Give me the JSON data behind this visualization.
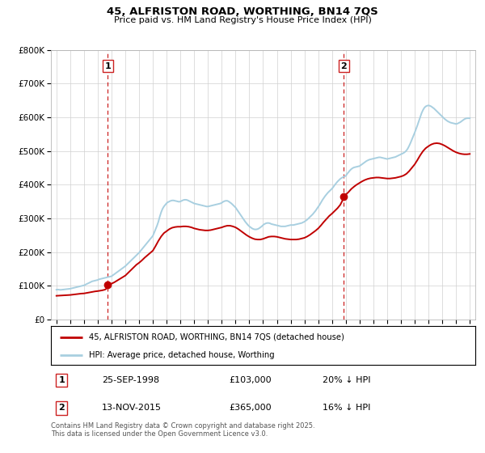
{
  "title": "45, ALFRISTON ROAD, WORTHING, BN14 7QS",
  "subtitle": "Price paid vs. HM Land Registry's House Price Index (HPI)",
  "sale1_date": "25-SEP-1998",
  "sale1_price": 103000,
  "sale1_label": "20% ↓ HPI",
  "sale2_date": "13-NOV-2015",
  "sale2_price": 365000,
  "sale2_label": "16% ↓ HPI",
  "sale1_x": 1998.73,
  "sale2_x": 2015.86,
  "hpi_color": "#a8cfe0",
  "price_paid_color": "#c00000",
  "vline_color": "#cc2222",
  "background_color": "#ffffff",
  "grid_color": "#d0d0d0",
  "legend_label_price": "45, ALFRISTON ROAD, WORTHING, BN14 7QS (detached house)",
  "legend_label_hpi": "HPI: Average price, detached house, Worthing",
  "footer": "Contains HM Land Registry data © Crown copyright and database right 2025.\nThis data is licensed under the Open Government Licence v3.0.",
  "ylim": [
    0,
    800000
  ],
  "xlim_start": 1994.6,
  "xlim_end": 2025.4,
  "hpi_data": [
    [
      1995.0,
      88000
    ],
    [
      1995.1,
      88500
    ],
    [
      1995.2,
      88000
    ],
    [
      1995.3,
      87500
    ],
    [
      1995.4,
      88000
    ],
    [
      1995.5,
      88500
    ],
    [
      1995.6,
      89000
    ],
    [
      1995.7,
      89500
    ],
    [
      1995.8,
      90000
    ],
    [
      1995.9,
      90500
    ],
    [
      1996.0,
      91000
    ],
    [
      1996.1,
      92000
    ],
    [
      1996.2,
      93000
    ],
    [
      1996.3,
      94000
    ],
    [
      1996.4,
      95000
    ],
    [
      1996.5,
      96000
    ],
    [
      1996.6,
      97000
    ],
    [
      1996.7,
      98000
    ],
    [
      1996.8,
      99000
    ],
    [
      1996.9,
      100000
    ],
    [
      1997.0,
      101000
    ],
    [
      1997.1,
      103000
    ],
    [
      1997.2,
      105000
    ],
    [
      1997.3,
      107000
    ],
    [
      1997.4,
      109000
    ],
    [
      1997.5,
      111000
    ],
    [
      1997.6,
      113000
    ],
    [
      1997.7,
      114000
    ],
    [
      1997.8,
      115000
    ],
    [
      1997.9,
      116000
    ],
    [
      1998.0,
      117000
    ],
    [
      1998.1,
      119000
    ],
    [
      1998.2,
      120000
    ],
    [
      1998.3,
      121000
    ],
    [
      1998.4,
      122000
    ],
    [
      1998.5,
      123000
    ],
    [
      1998.6,
      124000
    ],
    [
      1998.7,
      125000
    ],
    [
      1998.8,
      126000
    ],
    [
      1998.9,
      127000
    ],
    [
      1999.0,
      128000
    ],
    [
      1999.1,
      131000
    ],
    [
      1999.2,
      134000
    ],
    [
      1999.3,
      137000
    ],
    [
      1999.4,
      140000
    ],
    [
      1999.5,
      143000
    ],
    [
      1999.6,
      146000
    ],
    [
      1999.7,
      149000
    ],
    [
      1999.8,
      152000
    ],
    [
      1999.9,
      155000
    ],
    [
      2000.0,
      158000
    ],
    [
      2000.1,
      162000
    ],
    [
      2000.2,
      166000
    ],
    [
      2000.3,
      170000
    ],
    [
      2000.4,
      174000
    ],
    [
      2000.5,
      178000
    ],
    [
      2000.6,
      182000
    ],
    [
      2000.7,
      186000
    ],
    [
      2000.8,
      190000
    ],
    [
      2000.9,
      194000
    ],
    [
      2001.0,
      198000
    ],
    [
      2001.1,
      203000
    ],
    [
      2001.2,
      208000
    ],
    [
      2001.3,
      213000
    ],
    [
      2001.4,
      218000
    ],
    [
      2001.5,
      223000
    ],
    [
      2001.6,
      228000
    ],
    [
      2001.7,
      233000
    ],
    [
      2001.8,
      238000
    ],
    [
      2001.9,
      243000
    ],
    [
      2002.0,
      248000
    ],
    [
      2002.1,
      258000
    ],
    [
      2002.2,
      268000
    ],
    [
      2002.3,
      278000
    ],
    [
      2002.4,
      290000
    ],
    [
      2002.5,
      305000
    ],
    [
      2002.6,
      318000
    ],
    [
      2002.7,
      328000
    ],
    [
      2002.8,
      335000
    ],
    [
      2002.9,
      340000
    ],
    [
      2003.0,
      345000
    ],
    [
      2003.1,
      348000
    ],
    [
      2003.2,
      350000
    ],
    [
      2003.3,
      352000
    ],
    [
      2003.4,
      353000
    ],
    [
      2003.5,
      353000
    ],
    [
      2003.6,
      352000
    ],
    [
      2003.7,
      351000
    ],
    [
      2003.8,
      350000
    ],
    [
      2003.9,
      349000
    ],
    [
      2004.0,
      350000
    ],
    [
      2004.1,
      352000
    ],
    [
      2004.2,
      354000
    ],
    [
      2004.3,
      355000
    ],
    [
      2004.4,
      355000
    ],
    [
      2004.5,
      354000
    ],
    [
      2004.6,
      352000
    ],
    [
      2004.7,
      350000
    ],
    [
      2004.8,
      348000
    ],
    [
      2004.9,
      346000
    ],
    [
      2005.0,
      344000
    ],
    [
      2005.1,
      343000
    ],
    [
      2005.2,
      342000
    ],
    [
      2005.3,
      341000
    ],
    [
      2005.4,
      340000
    ],
    [
      2005.5,
      339000
    ],
    [
      2005.6,
      338000
    ],
    [
      2005.7,
      337000
    ],
    [
      2005.8,
      336000
    ],
    [
      2005.9,
      335000
    ],
    [
      2006.0,
      335000
    ],
    [
      2006.1,
      336000
    ],
    [
      2006.2,
      337000
    ],
    [
      2006.3,
      338000
    ],
    [
      2006.4,
      339000
    ],
    [
      2006.5,
      340000
    ],
    [
      2006.6,
      341000
    ],
    [
      2006.7,
      342000
    ],
    [
      2006.8,
      343000
    ],
    [
      2006.9,
      344000
    ],
    [
      2007.0,
      346000
    ],
    [
      2007.1,
      349000
    ],
    [
      2007.2,
      351000
    ],
    [
      2007.3,
      352000
    ],
    [
      2007.4,
      352000
    ],
    [
      2007.5,
      350000
    ],
    [
      2007.6,
      347000
    ],
    [
      2007.7,
      344000
    ],
    [
      2007.8,
      340000
    ],
    [
      2007.9,
      336000
    ],
    [
      2008.0,
      332000
    ],
    [
      2008.1,
      326000
    ],
    [
      2008.2,
      320000
    ],
    [
      2008.3,
      314000
    ],
    [
      2008.4,
      308000
    ],
    [
      2008.5,
      302000
    ],
    [
      2008.6,
      296000
    ],
    [
      2008.7,
      290000
    ],
    [
      2008.8,
      285000
    ],
    [
      2008.9,
      280000
    ],
    [
      2009.0,
      276000
    ],
    [
      2009.1,
      273000
    ],
    [
      2009.2,
      270000
    ],
    [
      2009.3,
      268000
    ],
    [
      2009.4,
      267000
    ],
    [
      2009.5,
      267000
    ],
    [
      2009.6,
      268000
    ],
    [
      2009.7,
      270000
    ],
    [
      2009.8,
      273000
    ],
    [
      2009.9,
      276000
    ],
    [
      2010.0,
      280000
    ],
    [
      2010.1,
      283000
    ],
    [
      2010.2,
      285000
    ],
    [
      2010.3,
      286000
    ],
    [
      2010.4,
      286000
    ],
    [
      2010.5,
      285000
    ],
    [
      2010.6,
      283000
    ],
    [
      2010.7,
      282000
    ],
    [
      2010.8,
      281000
    ],
    [
      2010.9,
      280000
    ],
    [
      2011.0,
      279000
    ],
    [
      2011.1,
      278000
    ],
    [
      2011.2,
      277000
    ],
    [
      2011.3,
      276000
    ],
    [
      2011.4,
      276000
    ],
    [
      2011.5,
      276000
    ],
    [
      2011.6,
      276000
    ],
    [
      2011.7,
      277000
    ],
    [
      2011.8,
      278000
    ],
    [
      2011.9,
      279000
    ],
    [
      2012.0,
      280000
    ],
    [
      2012.1,
      280000
    ],
    [
      2012.2,
      280000
    ],
    [
      2012.3,
      281000
    ],
    [
      2012.4,
      282000
    ],
    [
      2012.5,
      283000
    ],
    [
      2012.6,
      284000
    ],
    [
      2012.7,
      285000
    ],
    [
      2012.8,
      286000
    ],
    [
      2012.9,
      288000
    ],
    [
      2013.0,
      290000
    ],
    [
      2013.1,
      293000
    ],
    [
      2013.2,
      296000
    ],
    [
      2013.3,
      300000
    ],
    [
      2013.4,
      304000
    ],
    [
      2013.5,
      308000
    ],
    [
      2013.6,
      312000
    ],
    [
      2013.7,
      317000
    ],
    [
      2013.8,
      322000
    ],
    [
      2013.9,
      328000
    ],
    [
      2014.0,
      334000
    ],
    [
      2014.1,
      340000
    ],
    [
      2014.2,
      347000
    ],
    [
      2014.3,
      354000
    ],
    [
      2014.4,
      360000
    ],
    [
      2014.5,
      366000
    ],
    [
      2014.6,
      371000
    ],
    [
      2014.7,
      376000
    ],
    [
      2014.8,
      380000
    ],
    [
      2014.9,
      384000
    ],
    [
      2015.0,
      388000
    ],
    [
      2015.1,
      393000
    ],
    [
      2015.2,
      399000
    ],
    [
      2015.3,
      404000
    ],
    [
      2015.4,
      409000
    ],
    [
      2015.5,
      413000
    ],
    [
      2015.6,
      417000
    ],
    [
      2015.7,
      420000
    ],
    [
      2015.8,
      422000
    ],
    [
      2015.9,
      424000
    ],
    [
      2016.0,
      426000
    ],
    [
      2016.1,
      432000
    ],
    [
      2016.2,
      437000
    ],
    [
      2016.3,
      442000
    ],
    [
      2016.4,
      446000
    ],
    [
      2016.5,
      449000
    ],
    [
      2016.6,
      451000
    ],
    [
      2016.7,
      452000
    ],
    [
      2016.8,
      453000
    ],
    [
      2016.9,
      454000
    ],
    [
      2017.0,
      455000
    ],
    [
      2017.1,
      458000
    ],
    [
      2017.2,
      461000
    ],
    [
      2017.3,
      464000
    ],
    [
      2017.4,
      467000
    ],
    [
      2017.5,
      470000
    ],
    [
      2017.6,
      472000
    ],
    [
      2017.7,
      474000
    ],
    [
      2017.8,
      475000
    ],
    [
      2017.9,
      476000
    ],
    [
      2018.0,
      477000
    ],
    [
      2018.1,
      478000
    ],
    [
      2018.2,
      479000
    ],
    [
      2018.3,
      480000
    ],
    [
      2018.4,
      481000
    ],
    [
      2018.5,
      481000
    ],
    [
      2018.6,
      480000
    ],
    [
      2018.7,
      479000
    ],
    [
      2018.8,
      478000
    ],
    [
      2018.9,
      477000
    ],
    [
      2019.0,
      476000
    ],
    [
      2019.1,
      477000
    ],
    [
      2019.2,
      478000
    ],
    [
      2019.3,
      479000
    ],
    [
      2019.4,
      480000
    ],
    [
      2019.5,
      481000
    ],
    [
      2019.6,
      482000
    ],
    [
      2019.7,
      484000
    ],
    [
      2019.8,
      486000
    ],
    [
      2019.9,
      488000
    ],
    [
      2020.0,
      490000
    ],
    [
      2020.1,
      492000
    ],
    [
      2020.2,
      494000
    ],
    [
      2020.3,
      497000
    ],
    [
      2020.4,
      501000
    ],
    [
      2020.5,
      507000
    ],
    [
      2020.6,
      515000
    ],
    [
      2020.7,
      524000
    ],
    [
      2020.8,
      534000
    ],
    [
      2020.9,
      544000
    ],
    [
      2021.0,
      554000
    ],
    [
      2021.1,
      565000
    ],
    [
      2021.2,
      576000
    ],
    [
      2021.3,
      588000
    ],
    [
      2021.4,
      600000
    ],
    [
      2021.5,
      612000
    ],
    [
      2021.6,
      621000
    ],
    [
      2021.7,
      628000
    ],
    [
      2021.8,
      632000
    ],
    [
      2021.9,
      634000
    ],
    [
      2022.0,
      635000
    ],
    [
      2022.1,
      634000
    ],
    [
      2022.2,
      632000
    ],
    [
      2022.3,
      629000
    ],
    [
      2022.4,
      626000
    ],
    [
      2022.5,
      622000
    ],
    [
      2022.6,
      618000
    ],
    [
      2022.7,
      614000
    ],
    [
      2022.8,
      610000
    ],
    [
      2022.9,
      606000
    ],
    [
      2023.0,
      602000
    ],
    [
      2023.1,
      598000
    ],
    [
      2023.2,
      594000
    ],
    [
      2023.3,
      591000
    ],
    [
      2023.4,
      588000
    ],
    [
      2023.5,
      586000
    ],
    [
      2023.6,
      584000
    ],
    [
      2023.7,
      583000
    ],
    [
      2023.8,
      582000
    ],
    [
      2023.9,
      581000
    ],
    [
      2024.0,
      580000
    ],
    [
      2024.1,
      581000
    ],
    [
      2024.2,
      583000
    ],
    [
      2024.3,
      585000
    ],
    [
      2024.4,
      588000
    ],
    [
      2024.5,
      591000
    ],
    [
      2024.6,
      594000
    ],
    [
      2024.7,
      596000
    ],
    [
      2024.8,
      597000
    ],
    [
      2024.9,
      597000
    ],
    [
      2025.0,
      597000
    ]
  ],
  "price_paid_data": [
    [
      1995.0,
      70000
    ],
    [
      1995.2,
      70500
    ],
    [
      1995.4,
      71000
    ],
    [
      1995.6,
      71500
    ],
    [
      1995.8,
      72000
    ],
    [
      1996.0,
      72500
    ],
    [
      1996.2,
      73500
    ],
    [
      1996.4,
      74500
    ],
    [
      1996.6,
      75500
    ],
    [
      1996.8,
      76500
    ],
    [
      1997.0,
      77000
    ],
    [
      1997.2,
      78500
    ],
    [
      1997.4,
      80000
    ],
    [
      1997.6,
      81500
    ],
    [
      1997.8,
      83000
    ],
    [
      1998.0,
      84000
    ],
    [
      1998.3,
      86000
    ],
    [
      1998.5,
      88000
    ],
    [
      1998.6,
      90000
    ],
    [
      1998.73,
      103000
    ],
    [
      1999.0,
      106000
    ],
    [
      1999.2,
      110000
    ],
    [
      1999.4,
      115000
    ],
    [
      1999.6,
      120000
    ],
    [
      1999.8,
      125000
    ],
    [
      2000.0,
      130000
    ],
    [
      2000.2,
      138000
    ],
    [
      2000.4,
      146000
    ],
    [
      2000.6,
      154000
    ],
    [
      2000.8,
      162000
    ],
    [
      2001.0,
      168000
    ],
    [
      2001.2,
      175000
    ],
    [
      2001.4,
      183000
    ],
    [
      2001.6,
      190000
    ],
    [
      2001.8,
      197000
    ],
    [
      2002.0,
      204000
    ],
    [
      2002.2,
      218000
    ],
    [
      2002.4,
      233000
    ],
    [
      2002.6,
      246000
    ],
    [
      2002.8,
      256000
    ],
    [
      2003.0,
      262000
    ],
    [
      2003.2,
      268000
    ],
    [
      2003.4,
      272000
    ],
    [
      2003.6,
      274000
    ],
    [
      2003.8,
      275000
    ],
    [
      2004.0,
      275000
    ],
    [
      2004.2,
      276000
    ],
    [
      2004.4,
      276000
    ],
    [
      2004.6,
      275000
    ],
    [
      2004.8,
      273000
    ],
    [
      2005.0,
      270000
    ],
    [
      2005.2,
      268000
    ],
    [
      2005.4,
      266000
    ],
    [
      2005.6,
      265000
    ],
    [
      2005.8,
      264000
    ],
    [
      2006.0,
      264000
    ],
    [
      2006.2,
      265000
    ],
    [
      2006.4,
      267000
    ],
    [
      2006.6,
      269000
    ],
    [
      2006.8,
      271000
    ],
    [
      2007.0,
      273000
    ],
    [
      2007.2,
      276000
    ],
    [
      2007.4,
      278000
    ],
    [
      2007.6,
      278000
    ],
    [
      2007.8,
      276000
    ],
    [
      2008.0,
      273000
    ],
    [
      2008.2,
      268000
    ],
    [
      2008.4,
      262000
    ],
    [
      2008.6,
      256000
    ],
    [
      2008.8,
      250000
    ],
    [
      2009.0,
      245000
    ],
    [
      2009.2,
      241000
    ],
    [
      2009.4,
      238000
    ],
    [
      2009.6,
      237000
    ],
    [
      2009.8,
      237000
    ],
    [
      2010.0,
      239000
    ],
    [
      2010.2,
      242000
    ],
    [
      2010.4,
      245000
    ],
    [
      2010.6,
      246000
    ],
    [
      2010.8,
      246000
    ],
    [
      2011.0,
      245000
    ],
    [
      2011.2,
      243000
    ],
    [
      2011.4,
      241000
    ],
    [
      2011.6,
      239000
    ],
    [
      2011.8,
      238000
    ],
    [
      2012.0,
      237000
    ],
    [
      2012.2,
      237000
    ],
    [
      2012.4,
      237000
    ],
    [
      2012.6,
      238000
    ],
    [
      2012.8,
      240000
    ],
    [
      2013.0,
      242000
    ],
    [
      2013.2,
      246000
    ],
    [
      2013.4,
      251000
    ],
    [
      2013.6,
      257000
    ],
    [
      2013.8,
      263000
    ],
    [
      2014.0,
      270000
    ],
    [
      2014.2,
      279000
    ],
    [
      2014.4,
      289000
    ],
    [
      2014.6,
      298000
    ],
    [
      2014.8,
      307000
    ],
    [
      2015.0,
      314000
    ],
    [
      2015.2,
      322000
    ],
    [
      2015.4,
      330000
    ],
    [
      2015.6,
      340000
    ],
    [
      2015.75,
      352000
    ],
    [
      2015.86,
      365000
    ],
    [
      2016.0,
      370000
    ],
    [
      2016.2,
      378000
    ],
    [
      2016.4,
      387000
    ],
    [
      2016.6,
      394000
    ],
    [
      2016.8,
      400000
    ],
    [
      2017.0,
      405000
    ],
    [
      2017.2,
      410000
    ],
    [
      2017.4,
      414000
    ],
    [
      2017.6,
      417000
    ],
    [
      2017.8,
      419000
    ],
    [
      2018.0,
      420000
    ],
    [
      2018.2,
      421000
    ],
    [
      2018.4,
      421000
    ],
    [
      2018.6,
      420000
    ],
    [
      2018.8,
      419000
    ],
    [
      2019.0,
      418000
    ],
    [
      2019.2,
      418000
    ],
    [
      2019.4,
      419000
    ],
    [
      2019.6,
      420000
    ],
    [
      2019.8,
      422000
    ],
    [
      2020.0,
      424000
    ],
    [
      2020.2,
      427000
    ],
    [
      2020.4,
      432000
    ],
    [
      2020.6,
      440000
    ],
    [
      2020.8,
      450000
    ],
    [
      2021.0,
      460000
    ],
    [
      2021.2,
      473000
    ],
    [
      2021.4,
      487000
    ],
    [
      2021.6,
      499000
    ],
    [
      2021.8,
      508000
    ],
    [
      2022.0,
      514000
    ],
    [
      2022.2,
      519000
    ],
    [
      2022.4,
      522000
    ],
    [
      2022.6,
      523000
    ],
    [
      2022.8,
      522000
    ],
    [
      2023.0,
      519000
    ],
    [
      2023.2,
      515000
    ],
    [
      2023.4,
      510000
    ],
    [
      2023.6,
      505000
    ],
    [
      2023.8,
      500000
    ],
    [
      2024.0,
      496000
    ],
    [
      2024.2,
      493000
    ],
    [
      2024.4,
      491000
    ],
    [
      2024.6,
      490000
    ],
    [
      2024.8,
      490000
    ],
    [
      2025.0,
      491000
    ]
  ]
}
